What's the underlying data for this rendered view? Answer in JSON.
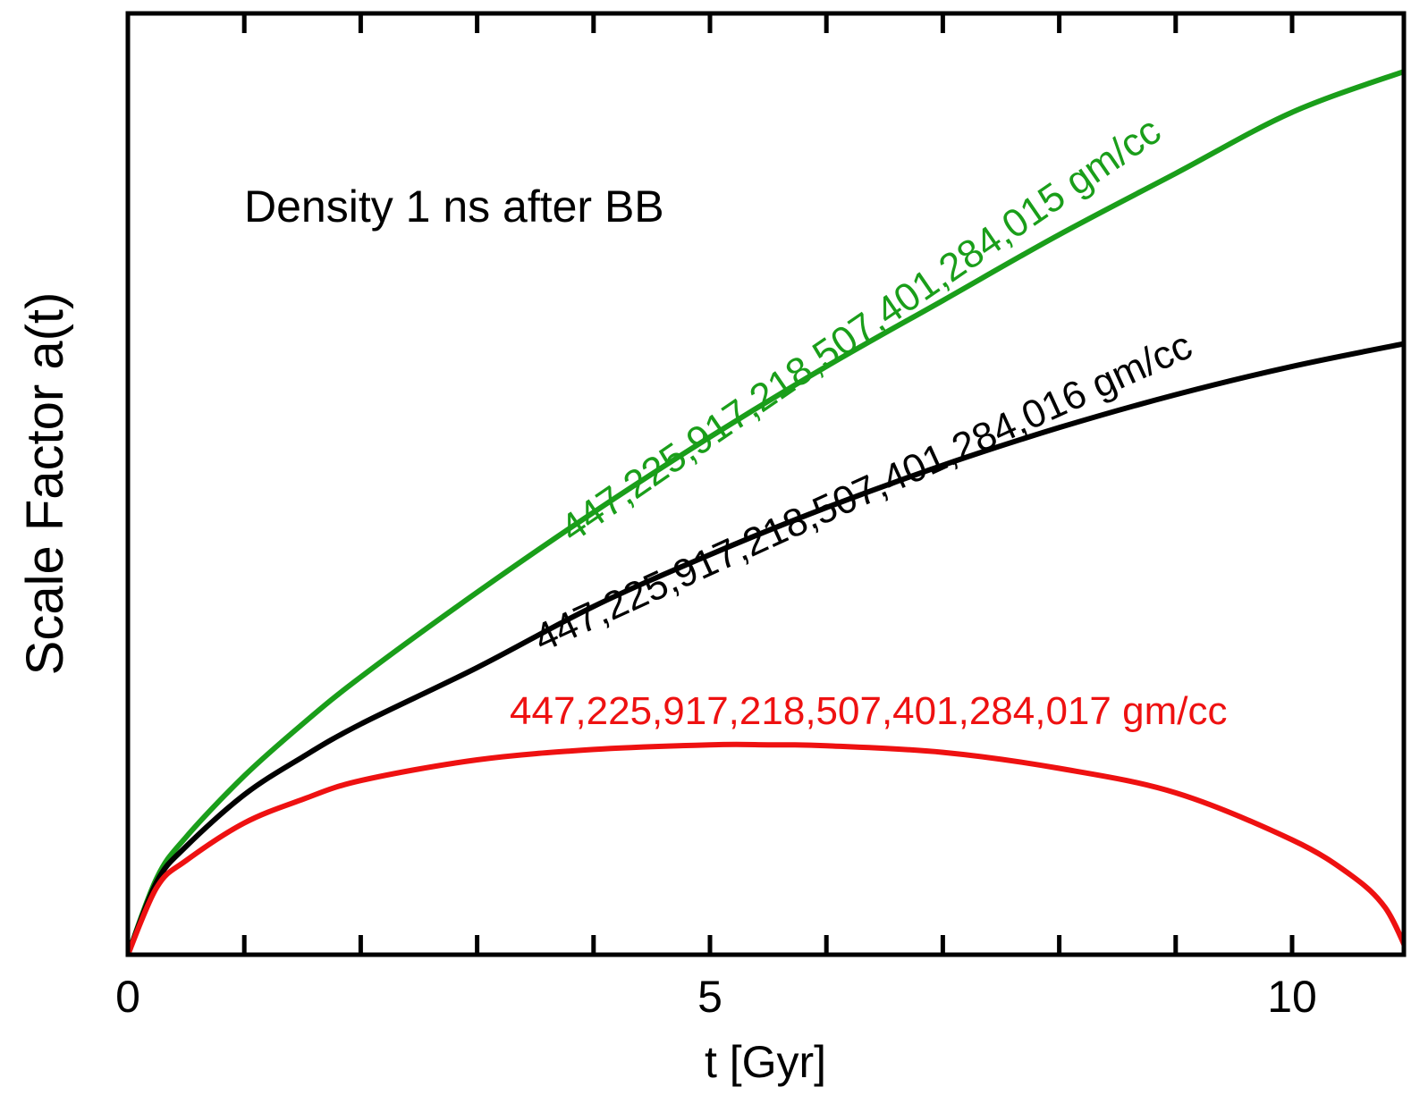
{
  "chart_data": {
    "type": "line",
    "title": "",
    "xlabel": "t [Gyr]",
    "ylabel": "Scale Factor a(t)",
    "xlim": [
      0,
      11
    ],
    "ylim": [
      0,
      1
    ],
    "x_ticks": [
      0,
      1,
      2,
      3,
      4,
      5,
      6,
      7,
      8,
      9,
      10
    ],
    "x_tick_labels": [
      {
        "value": 0,
        "label": "0"
      },
      {
        "value": 5,
        "label": "5"
      },
      {
        "value": 10,
        "label": "10"
      }
    ],
    "y_tick_labels_shown": false,
    "grid": false,
    "annotation": "Density 1 ns after BB",
    "series": [
      {
        "name": "447,225,917,218,507,401,284,015 gm/cc",
        "color": "#1a9e1a",
        "x": [
          0,
          0.25,
          0.5,
          1,
          1.5,
          2,
          3,
          4,
          5,
          6,
          7,
          8,
          9,
          10,
          11
        ],
        "y": [
          0,
          0.082,
          0.125,
          0.19,
          0.245,
          0.295,
          0.385,
          0.47,
          0.55,
          0.625,
          0.695,
          0.765,
          0.83,
          0.895,
          0.94
        ]
      },
      {
        "name": "447,225,917,218,507,401,284,016 gm/cc",
        "color": "#000000",
        "x": [
          0,
          0.25,
          0.5,
          1,
          1.5,
          2,
          3,
          4,
          5,
          6,
          7,
          8,
          9,
          10,
          11
        ],
        "y": [
          0,
          0.078,
          0.115,
          0.17,
          0.21,
          0.245,
          0.305,
          0.37,
          0.425,
          0.475,
          0.52,
          0.56,
          0.595,
          0.625,
          0.65
        ]
      },
      {
        "name": "447,225,917,218,507,401,284,017 gm/cc",
        "color": "#ee1111",
        "x": [
          0,
          0.25,
          0.5,
          1,
          1.5,
          2,
          3,
          4,
          5,
          5.5,
          6,
          7,
          8,
          9,
          10,
          10.5,
          10.8,
          11
        ],
        "y": [
          0,
          0.072,
          0.1,
          0.14,
          0.165,
          0.185,
          0.207,
          0.218,
          0.223,
          0.223,
          0.222,
          0.215,
          0.198,
          0.172,
          0.122,
          0.085,
          0.05,
          0
        ]
      }
    ]
  }
}
